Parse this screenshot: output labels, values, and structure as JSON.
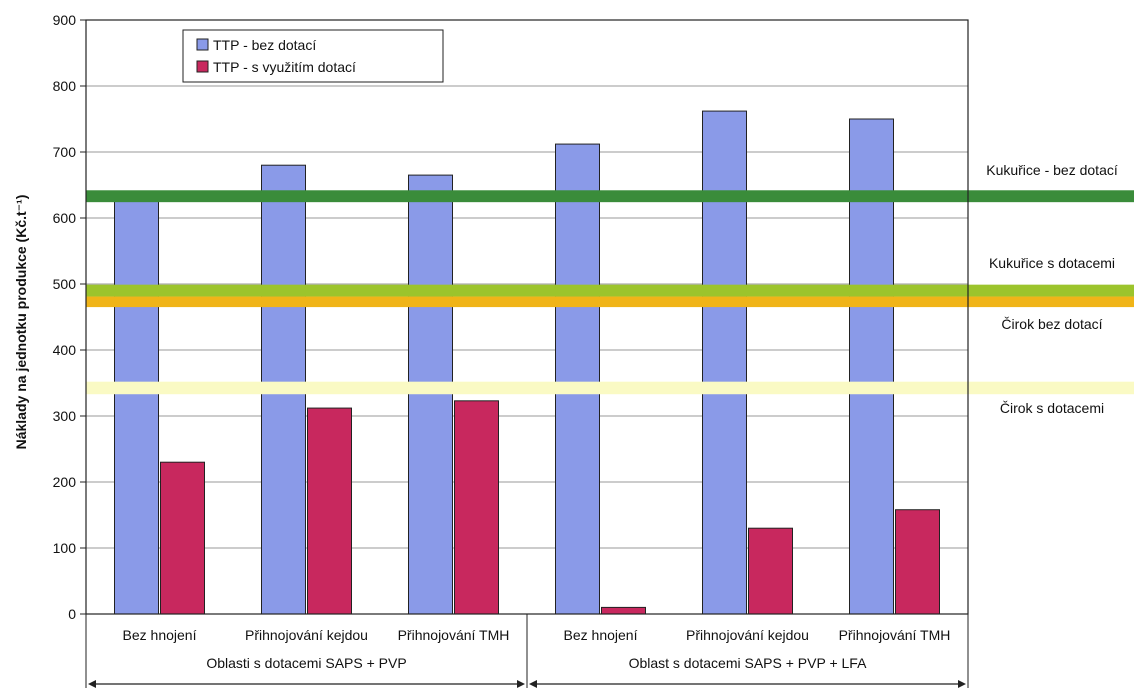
{
  "chart_data": {
    "type": "bar",
    "title": "",
    "xlabel": "",
    "ylabel": "Náklady na jednotku produkce (Kč.t⁻¹)",
    "ylim": [
      0,
      900
    ],
    "yticks": [
      0,
      100,
      200,
      300,
      400,
      500,
      600,
      700,
      800,
      900
    ],
    "grid": true,
    "legend_position": "top-left",
    "categories": [
      "Bez hnojení",
      "Přihnojování kejdou",
      "Přihnojování TMH",
      "Bez hnojení",
      "Přihnojování kejdou",
      "Přihnojování TMH"
    ],
    "groups": [
      {
        "label": "Oblasti s dotacemi SAPS + PVP",
        "categories": [
          0,
          1,
          2
        ]
      },
      {
        "label": "Oblast s dotacemi SAPS + PVP + LFA",
        "categories": [
          3,
          4,
          5
        ]
      }
    ],
    "series": [
      {
        "name": "TTP - bez dotací",
        "color": "#8a9ae8",
        "values": [
          625,
          680,
          665,
          712,
          762,
          750
        ]
      },
      {
        "name": "TTP -  s využitím dotací",
        "color": "#c8285e",
        "values": [
          230,
          312,
          323,
          10,
          130,
          158
        ]
      }
    ],
    "reference_bands": [
      {
        "label": "Kukuřice - bez dotací",
        "color": "#3a8c3a",
        "low": 624,
        "high": 642
      },
      {
        "label": "Kukuřice s dotacemi",
        "color": "#9cc42c",
        "low": 481,
        "high": 499
      },
      {
        "label": "Čirok bez dotací",
        "color": "#f0b418",
        "low": 465,
        "high": 481
      },
      {
        "label": "Čirok s dotacemi",
        "color": "#fafac4",
        "low": 333,
        "high": 352
      }
    ]
  }
}
